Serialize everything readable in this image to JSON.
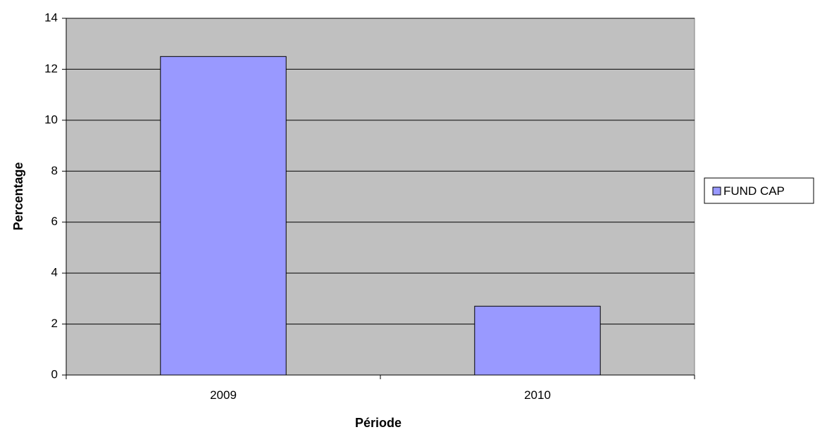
{
  "chart_data": {
    "type": "bar",
    "categories": [
      "2009",
      "2010"
    ],
    "series": [
      {
        "name": "FUND CAP",
        "values": [
          12.5,
          2.7
        ]
      }
    ],
    "title": "",
    "xlabel": "Période",
    "ylabel": "Percentage",
    "ylim": [
      0,
      14
    ],
    "yticks": [
      0,
      2,
      4,
      6,
      8,
      10,
      12,
      14
    ],
    "grid": true,
    "legend_position": "right",
    "colors": {
      "plot_background": "#c0c0c0",
      "bar_fill": "#9999ff",
      "bar_stroke": "#000000",
      "gridline": "#000000"
    }
  }
}
